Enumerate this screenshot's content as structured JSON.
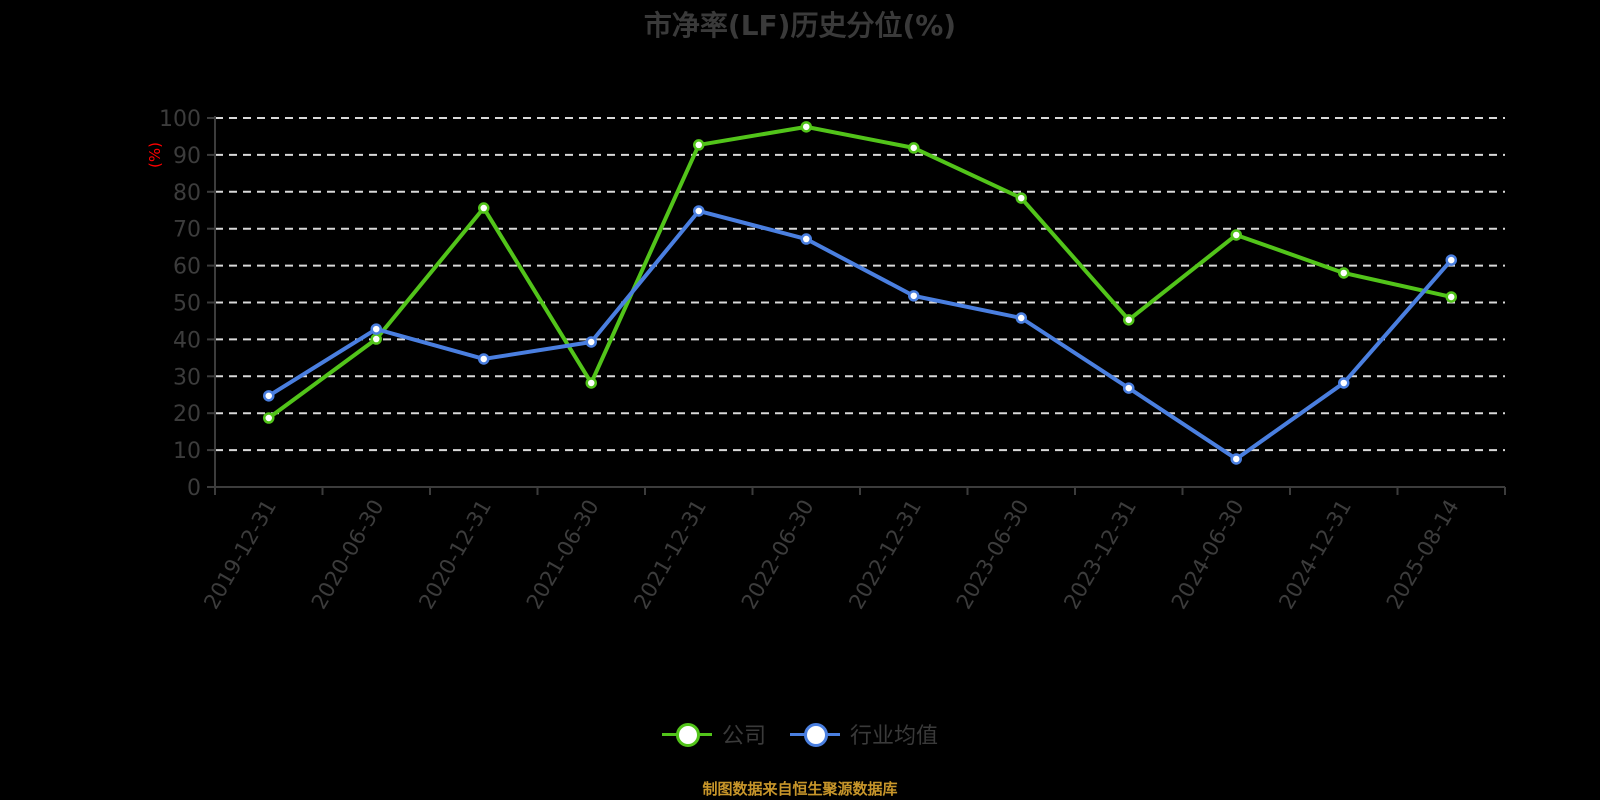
{
  "title": "市净率(LF)历史分位(%)",
  "y_unit": "(%)",
  "source": "制图数据来自恒生聚源数据库",
  "legend": [
    {
      "label": "公司",
      "color": "#52c41a"
    },
    {
      "label": "行业均值",
      "color": "#4a7fe0"
    }
  ],
  "colors": {
    "company": "#52c41a",
    "industry": "#4a7fe0",
    "grid": "#d9d9d9",
    "axis": "#3c3c3c",
    "background": "#000000"
  },
  "chart_data": {
    "type": "line",
    "title": "市净率(LF)历史分位(%)",
    "xlabel": "",
    "ylabel": "(%)",
    "ylim": [
      0,
      100
    ],
    "yticks": [
      0,
      10,
      20,
      30,
      40,
      50,
      60,
      70,
      80,
      90,
      100
    ],
    "grid": true,
    "legend_position": "bottom",
    "categories": [
      "2019-12-31",
      "2020-06-30",
      "2020-12-31",
      "2021-06-30",
      "2021-12-31",
      "2022-06-30",
      "2022-12-31",
      "2023-06-30",
      "2023-12-31",
      "2024-06-30",
      "2024-12-31",
      "2025-08-14"
    ],
    "series": [
      {
        "name": "公司",
        "color": "#52c41a",
        "values": [
          18.7,
          40.1,
          75.6,
          28.2,
          92.7,
          97.6,
          91.9,
          78.3,
          45.3,
          68.3,
          58.0,
          51.5
        ]
      },
      {
        "name": "行业均值",
        "color": "#4a7fe0",
        "values": [
          24.7,
          42.8,
          34.7,
          39.3,
          74.8,
          67.2,
          51.8,
          45.8,
          26.8,
          7.6,
          28.2,
          61.5
        ]
      }
    ]
  }
}
